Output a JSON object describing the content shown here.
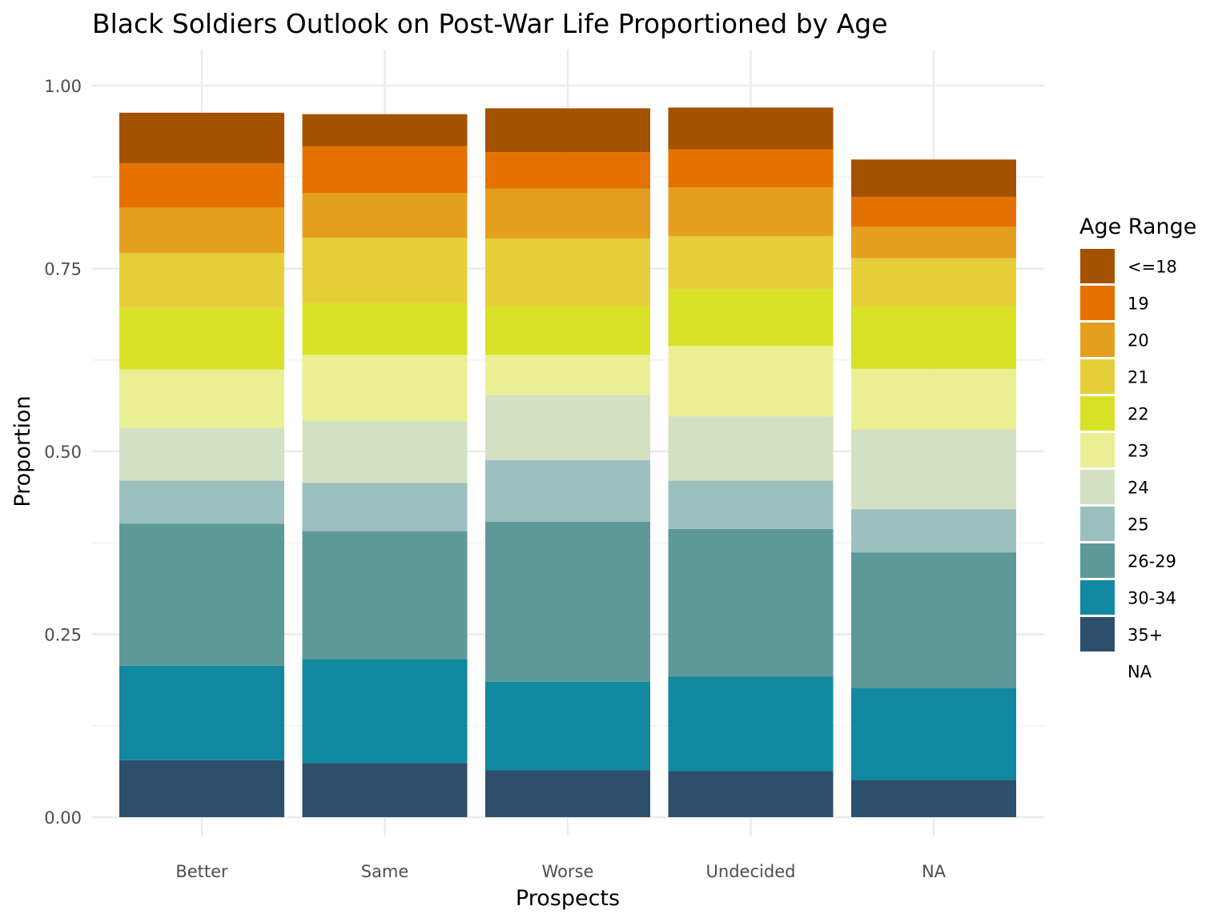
{
  "chart_data": {
    "type": "bar",
    "stacked": true,
    "title": "Black Soldiers Outlook on Post-War Life Proportioned by Age",
    "xlabel": "Prospects",
    "ylabel": "Proportion",
    "ylim": [
      0,
      1.0
    ],
    "yticks": [
      "0.00",
      "0.25",
      "0.50",
      "0.75",
      "1.00"
    ],
    "grid": true,
    "legend_position": "right",
    "legend_title": "Age Range",
    "categories": [
      "Better",
      "Same",
      "Worse",
      "Undecided",
      "NA"
    ],
    "series": [
      {
        "name": "35+",
        "color": "#2d4f6c",
        "values": [
          0.078,
          0.074,
          0.064,
          0.063,
          0.051
        ]
      },
      {
        "name": "30-34",
        "color": "#11889f",
        "values": [
          0.129,
          0.142,
          0.121,
          0.129,
          0.126
        ]
      },
      {
        "name": "26-29",
        "color": "#5e9999",
        "values": [
          0.194,
          0.175,
          0.219,
          0.202,
          0.185
        ]
      },
      {
        "name": "25",
        "color": "#9cc0bf",
        "values": [
          0.059,
          0.066,
          0.084,
          0.066,
          0.059
        ]
      },
      {
        "name": "24",
        "color": "#d3e0c2",
        "values": [
          0.072,
          0.084,
          0.089,
          0.088,
          0.109
        ]
      },
      {
        "name": "23",
        "color": "#eaef94",
        "values": [
          0.08,
          0.091,
          0.055,
          0.096,
          0.083
        ]
      },
      {
        "name": "22",
        "color": "#d8e126",
        "values": [
          0.084,
          0.071,
          0.066,
          0.078,
          0.085
        ]
      },
      {
        "name": "21",
        "color": "#e6ce39",
        "values": [
          0.075,
          0.089,
          0.093,
          0.072,
          0.066
        ]
      },
      {
        "name": "20",
        "color": "#e59f1f",
        "values": [
          0.062,
          0.061,
          0.068,
          0.067,
          0.043
        ]
      },
      {
        "name": "19",
        "color": "#e57200",
        "values": [
          0.061,
          0.064,
          0.05,
          0.052,
          0.041
        ]
      },
      {
        "name": "<=18",
        "color": "#a35200",
        "values": [
          0.069,
          0.044,
          0.06,
          0.057,
          0.051
        ]
      }
    ],
    "legend": [
      {
        "label": "<=18",
        "color": "#a35200"
      },
      {
        "label": "19",
        "color": "#e57200"
      },
      {
        "label": "20",
        "color": "#e59f1f"
      },
      {
        "label": "21",
        "color": "#e6ce39"
      },
      {
        "label": "22",
        "color": "#d8e126"
      },
      {
        "label": "23",
        "color": "#eaef94"
      },
      {
        "label": "24",
        "color": "#d3e0c2"
      },
      {
        "label": "25",
        "color": "#9cc0bf"
      },
      {
        "label": "26-29",
        "color": "#5e9999"
      },
      {
        "label": "30-34",
        "color": "#11889f"
      },
      {
        "label": "35+",
        "color": "#2d4f6c"
      },
      {
        "label": "NA",
        "color": "#ffffff"
      }
    ]
  }
}
